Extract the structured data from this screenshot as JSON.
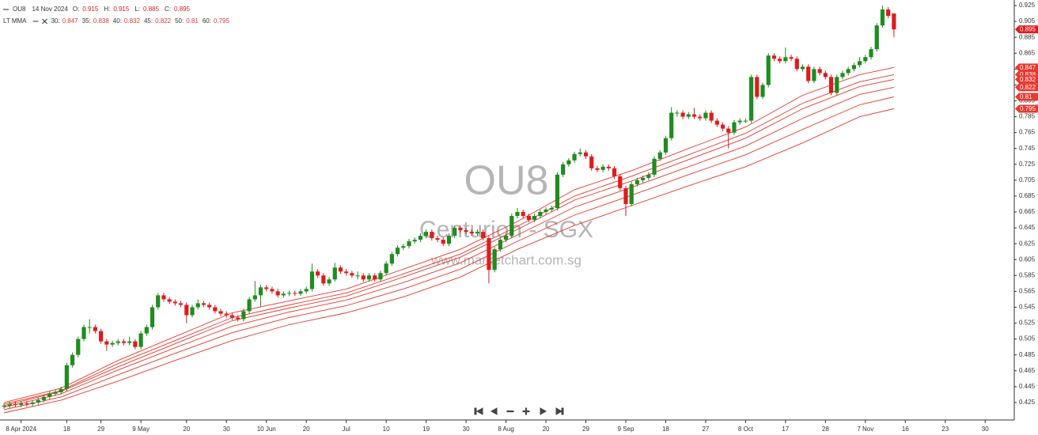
{
  "chart_data": {
    "type": "candlestick",
    "header": {
      "symbol": "OU8",
      "date": "14 Nov 2024",
      "labels": [
        "O:",
        "H:",
        "L:",
        "C:"
      ],
      "indicator": "LT MMA"
    },
    "watermark": {
      "symbol": "OU8",
      "name": "Centurion - SGX",
      "site": "www.marketchart.com.sg"
    },
    "up_color": "#1e8c1e",
    "down_color": "#e01b1b",
    "candles": {
      "open": [
        0.42,
        0.421,
        0.423,
        0.422,
        0.424,
        0.423,
        0.425,
        0.428,
        0.432,
        0.436,
        0.438,
        0.442,
        0.472,
        0.485,
        0.505,
        0.52,
        0.52,
        0.515,
        0.502,
        0.498,
        0.5,
        0.502,
        0.5,
        0.502,
        0.495,
        0.512,
        0.52,
        0.545,
        0.56,
        0.555,
        0.552,
        0.55,
        0.548,
        0.535,
        0.545,
        0.55,
        0.548,
        0.545,
        0.54,
        0.537,
        0.535,
        0.532,
        0.53,
        0.54,
        0.555,
        0.56,
        0.57,
        0.568,
        0.565,
        0.56,
        0.562,
        0.563,
        0.562,
        0.565,
        0.568,
        0.59,
        0.585,
        0.575,
        0.58,
        0.595,
        0.59,
        0.588,
        0.585,
        0.585,
        0.58,
        0.585,
        0.58,
        0.588,
        0.6,
        0.612,
        0.62,
        0.622,
        0.628,
        0.63,
        0.635,
        0.64,
        0.632,
        0.63,
        0.625,
        0.635,
        0.645,
        0.642,
        0.64,
        0.638,
        0.64,
        0.632,
        0.592,
        0.618,
        0.63,
        0.635,
        0.66,
        0.665,
        0.66,
        0.655,
        0.66,
        0.665,
        0.668,
        0.67,
        0.712,
        0.725,
        0.73,
        0.738,
        0.74,
        0.735,
        0.72,
        0.718,
        0.722,
        0.72,
        0.71,
        0.695,
        0.675,
        0.7,
        0.705,
        0.708,
        0.712,
        0.732,
        0.74,
        0.758,
        0.79,
        0.79,
        0.785,
        0.788,
        0.785,
        0.783,
        0.79,
        0.78,
        0.775,
        0.77,
        0.765,
        0.778,
        0.78,
        0.78,
        0.835,
        0.81,
        0.825,
        0.862,
        0.858,
        0.855,
        0.86,
        0.858,
        0.845,
        0.848,
        0.83,
        0.845,
        0.84,
        0.835,
        0.815,
        0.835,
        0.84,
        0.845,
        0.85,
        0.855,
        0.86,
        0.87,
        0.9,
        0.92,
        0.915
      ],
      "high": [
        0.424,
        0.426,
        0.426,
        0.427,
        0.427,
        0.428,
        0.431,
        0.435,
        0.439,
        0.441,
        0.445,
        0.475,
        0.488,
        0.508,
        0.523,
        0.53,
        0.523,
        0.518,
        0.505,
        0.503,
        0.505,
        0.505,
        0.508,
        0.505,
        0.515,
        0.523,
        0.548,
        0.563,
        0.563,
        0.558,
        0.555,
        0.553,
        0.551,
        0.548,
        0.555,
        0.553,
        0.551,
        0.548,
        0.543,
        0.54,
        0.538,
        0.535,
        0.543,
        0.558,
        0.578,
        0.573,
        0.573,
        0.571,
        0.568,
        0.565,
        0.566,
        0.566,
        0.568,
        0.571,
        0.6,
        0.593,
        0.588,
        0.583,
        0.601,
        0.598,
        0.593,
        0.591,
        0.59,
        0.588,
        0.588,
        0.588,
        0.591,
        0.603,
        0.615,
        0.623,
        0.625,
        0.631,
        0.633,
        0.638,
        0.643,
        0.643,
        0.635,
        0.633,
        0.638,
        0.648,
        0.648,
        0.645,
        0.643,
        0.643,
        0.643,
        0.635,
        0.621,
        0.633,
        0.638,
        0.663,
        0.67,
        0.668,
        0.663,
        0.663,
        0.668,
        0.671,
        0.673,
        0.715,
        0.728,
        0.733,
        0.741,
        0.745,
        0.743,
        0.738,
        0.723,
        0.725,
        0.725,
        0.723,
        0.713,
        0.698,
        0.703,
        0.708,
        0.711,
        0.715,
        0.735,
        0.743,
        0.761,
        0.797,
        0.793,
        0.793,
        0.791,
        0.796,
        0.788,
        0.793,
        0.793,
        0.783,
        0.778,
        0.773,
        0.781,
        0.783,
        0.783,
        0.838,
        0.838,
        0.828,
        0.865,
        0.865,
        0.861,
        0.872,
        0.863,
        0.861,
        0.851,
        0.851,
        0.848,
        0.848,
        0.843,
        0.838,
        0.838,
        0.843,
        0.848,
        0.853,
        0.86,
        0.863,
        0.873,
        0.903,
        0.925,
        0.923,
        0.915
      ],
      "low": [
        0.417,
        0.418,
        0.419,
        0.419,
        0.42,
        0.42,
        0.422,
        0.425,
        0.429,
        0.433,
        0.435,
        0.439,
        0.469,
        0.482,
        0.502,
        0.512,
        0.512,
        0.499,
        0.49,
        0.495,
        0.497,
        0.497,
        0.497,
        0.492,
        0.492,
        0.509,
        0.517,
        0.542,
        0.552,
        0.549,
        0.547,
        0.545,
        0.525,
        0.532,
        0.542,
        0.545,
        0.542,
        0.537,
        0.534,
        0.532,
        0.529,
        0.527,
        0.527,
        0.537,
        0.552,
        0.546,
        0.565,
        0.562,
        0.557,
        0.557,
        0.559,
        0.559,
        0.559,
        0.562,
        0.565,
        0.582,
        0.572,
        0.572,
        0.577,
        0.587,
        0.585,
        0.582,
        0.58,
        0.577,
        0.577,
        0.577,
        0.577,
        0.585,
        0.597,
        0.609,
        0.617,
        0.619,
        0.625,
        0.627,
        0.632,
        0.629,
        0.627,
        0.622,
        0.622,
        0.632,
        0.639,
        0.637,
        0.635,
        0.635,
        0.629,
        0.575,
        0.589,
        0.615,
        0.627,
        0.632,
        0.657,
        0.657,
        0.652,
        0.652,
        0.657,
        0.662,
        0.665,
        0.667,
        0.709,
        0.722,
        0.727,
        0.735,
        0.732,
        0.717,
        0.715,
        0.715,
        0.717,
        0.707,
        0.692,
        0.66,
        0.672,
        0.697,
        0.702,
        0.705,
        0.709,
        0.729,
        0.737,
        0.755,
        0.785,
        0.782,
        0.782,
        0.782,
        0.78,
        0.78,
        0.777,
        0.772,
        0.767,
        0.745,
        0.762,
        0.775,
        0.777,
        0.777,
        0.807,
        0.807,
        0.822,
        0.855,
        0.852,
        0.852,
        0.855,
        0.842,
        0.842,
        0.827,
        0.827,
        0.837,
        0.832,
        0.812,
        0.812,
        0.832,
        0.837,
        0.842,
        0.847,
        0.852,
        0.857,
        0.867,
        0.897,
        0.909,
        0.885
      ],
      "close": [
        0.421,
        0.423,
        0.422,
        0.424,
        0.423,
        0.425,
        0.428,
        0.432,
        0.436,
        0.438,
        0.442,
        0.472,
        0.485,
        0.505,
        0.52,
        0.52,
        0.515,
        0.502,
        0.498,
        0.5,
        0.502,
        0.5,
        0.502,
        0.495,
        0.512,
        0.52,
        0.545,
        0.56,
        0.555,
        0.552,
        0.55,
        0.548,
        0.535,
        0.545,
        0.55,
        0.548,
        0.545,
        0.54,
        0.537,
        0.535,
        0.532,
        0.53,
        0.54,
        0.555,
        0.56,
        0.57,
        0.568,
        0.565,
        0.56,
        0.562,
        0.563,
        0.562,
        0.565,
        0.568,
        0.59,
        0.585,
        0.575,
        0.58,
        0.595,
        0.59,
        0.588,
        0.585,
        0.585,
        0.58,
        0.585,
        0.58,
        0.588,
        0.6,
        0.612,
        0.62,
        0.622,
        0.628,
        0.63,
        0.635,
        0.64,
        0.632,
        0.63,
        0.625,
        0.635,
        0.645,
        0.642,
        0.64,
        0.638,
        0.64,
        0.632,
        0.592,
        0.618,
        0.63,
        0.635,
        0.66,
        0.665,
        0.66,
        0.655,
        0.66,
        0.665,
        0.668,
        0.67,
        0.712,
        0.725,
        0.73,
        0.738,
        0.74,
        0.735,
        0.72,
        0.718,
        0.722,
        0.72,
        0.71,
        0.695,
        0.675,
        0.7,
        0.705,
        0.708,
        0.712,
        0.732,
        0.74,
        0.758,
        0.79,
        0.79,
        0.785,
        0.788,
        0.785,
        0.783,
        0.79,
        0.78,
        0.775,
        0.77,
        0.765,
        0.778,
        0.78,
        0.78,
        0.835,
        0.81,
        0.825,
        0.862,
        0.858,
        0.855,
        0.86,
        0.858,
        0.845,
        0.848,
        0.83,
        0.845,
        0.84,
        0.835,
        0.815,
        0.835,
        0.84,
        0.845,
        0.85,
        0.855,
        0.86,
        0.87,
        0.9,
        0.92,
        0.912,
        0.895
      ]
    },
    "series": [
      {
        "name": "30:",
        "color": "#e8382f",
        "x": [
          0,
          10,
          20,
          30,
          40,
          50,
          60,
          70,
          80,
          90,
          100,
          110,
          120,
          130,
          140,
          150,
          156
        ],
        "values": [
          0.425,
          0.443,
          0.478,
          0.508,
          0.538,
          0.553,
          0.568,
          0.593,
          0.618,
          0.653,
          0.693,
          0.717,
          0.745,
          0.772,
          0.812,
          0.838,
          0.847
        ]
      },
      {
        "name": "35:",
        "color": "#e8382f",
        "x": [
          0,
          10,
          20,
          30,
          40,
          50,
          60,
          70,
          80,
          90,
          100,
          110,
          120,
          130,
          140,
          150,
          156
        ],
        "values": [
          0.423,
          0.44,
          0.474,
          0.503,
          0.532,
          0.548,
          0.563,
          0.587,
          0.612,
          0.647,
          0.685,
          0.71,
          0.737,
          0.764,
          0.802,
          0.829,
          0.838
        ]
      },
      {
        "name": "40:",
        "color": "#e8382f",
        "x": [
          0,
          10,
          20,
          30,
          40,
          50,
          60,
          70,
          80,
          90,
          100,
          110,
          120,
          130,
          140,
          150,
          156
        ],
        "values": [
          0.421,
          0.439,
          0.47,
          0.499,
          0.528,
          0.544,
          0.559,
          0.583,
          0.608,
          0.643,
          0.68,
          0.704,
          0.731,
          0.758,
          0.795,
          0.823,
          0.832
        ]
      },
      {
        "name": "45:",
        "color": "#e8382f",
        "x": [
          0,
          10,
          20,
          30,
          40,
          50,
          60,
          70,
          80,
          90,
          100,
          110,
          120,
          130,
          140,
          150,
          156
        ],
        "values": [
          0.419,
          0.436,
          0.466,
          0.494,
          0.521,
          0.539,
          0.554,
          0.576,
          0.601,
          0.636,
          0.671,
          0.696,
          0.722,
          0.748,
          0.783,
          0.813,
          0.822
        ]
      },
      {
        "name": "50:",
        "color": "#e8382f",
        "x": [
          0,
          10,
          20,
          30,
          40,
          50,
          60,
          70,
          80,
          90,
          100,
          110,
          120,
          130,
          140,
          150,
          156
        ],
        "values": [
          0.416,
          0.432,
          0.46,
          0.487,
          0.513,
          0.532,
          0.547,
          0.568,
          0.593,
          0.628,
          0.661,
          0.686,
          0.712,
          0.737,
          0.769,
          0.8,
          0.81
        ]
      },
      {
        "name": "60:",
        "color": "#e8382f",
        "x": [
          0,
          10,
          20,
          30,
          40,
          50,
          60,
          70,
          80,
          90,
          100,
          110,
          120,
          130,
          140,
          150,
          156
        ],
        "values": [
          0.412,
          0.428,
          0.452,
          0.478,
          0.503,
          0.523,
          0.538,
          0.558,
          0.583,
          0.618,
          0.648,
          0.673,
          0.698,
          0.722,
          0.752,
          0.785,
          0.795
        ]
      }
    ],
    "xlim": [
      -0.7,
      177.1
    ],
    "xticks": [
      {
        "value": 3,
        "label": "8 Apr 2024"
      },
      {
        "value": 11,
        "label": "18"
      },
      {
        "value": 17,
        "label": "29"
      },
      {
        "value": 24,
        "label": "9 May"
      },
      {
        "value": 32,
        "label": "20"
      },
      {
        "value": 39,
        "label": "30"
      },
      {
        "value": 46,
        "label": "10 Jun"
      },
      {
        "value": 53,
        "label": "20"
      },
      {
        "value": 60,
        "label": "Jul"
      },
      {
        "value": 67,
        "label": "10"
      },
      {
        "value": 74,
        "label": "19"
      },
      {
        "value": 81,
        "label": "30"
      },
      {
        "value": 88,
        "label": "8 Aug"
      },
      {
        "value": 95,
        "label": "20"
      },
      {
        "value": 102,
        "label": "29"
      },
      {
        "value": 109,
        "label": "9 Sep"
      },
      {
        "value": 116,
        "label": "18"
      },
      {
        "value": 123,
        "label": "27"
      },
      {
        "value": 130,
        "label": "8 Oct"
      },
      {
        "value": 137,
        "label": "17"
      },
      {
        "value": 144,
        "label": "28"
      },
      {
        "value": 151,
        "label": "7 Nov"
      },
      {
        "value": 158,
        "label": "16"
      },
      {
        "value": 165,
        "label": "23"
      },
      {
        "value": 172,
        "label": "30"
      }
    ],
    "ylim": [
      0.403,
      0.932
    ],
    "yticks": [
      0.425,
      0.445,
      0.465,
      0.485,
      0.505,
      0.525,
      0.545,
      0.565,
      0.585,
      0.605,
      0.625,
      0.645,
      0.665,
      0.685,
      0.705,
      0.725,
      0.745,
      0.765,
      0.785,
      0.805,
      0.825,
      0.845,
      0.865,
      0.885,
      0.905,
      0.925
    ]
  }
}
